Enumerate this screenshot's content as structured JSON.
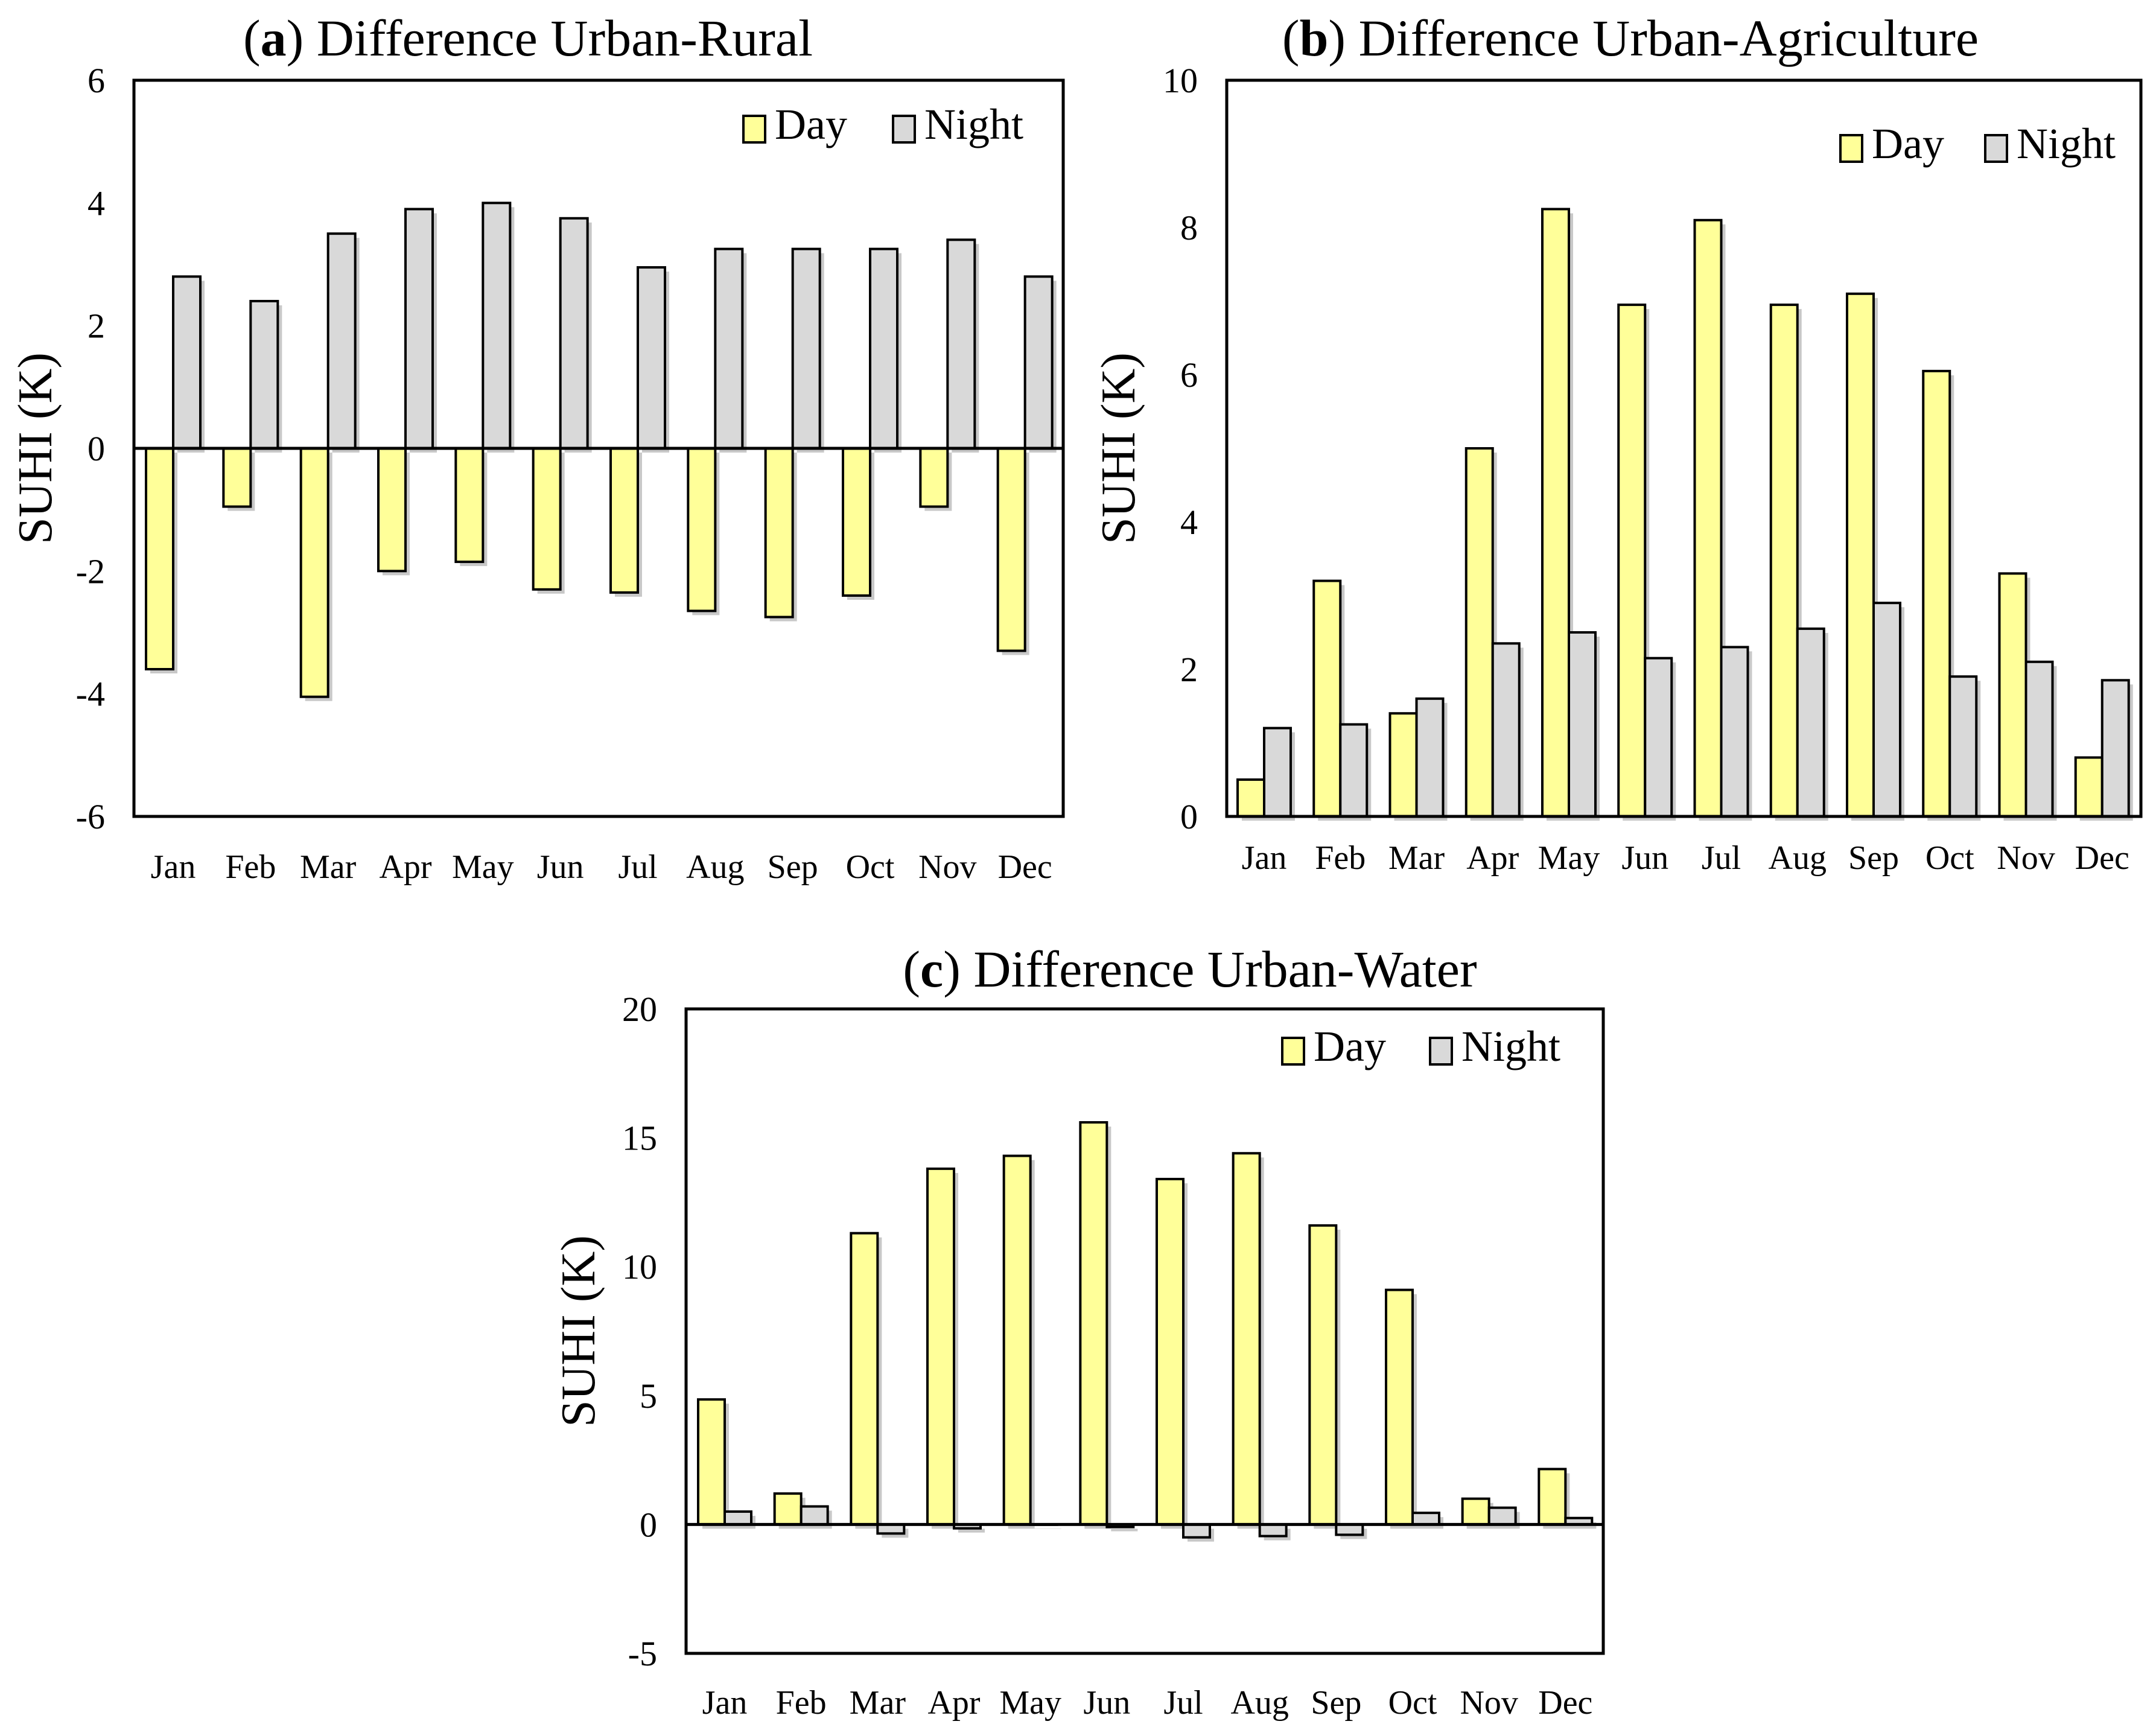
{
  "colors": {
    "day": "#ffff99",
    "night": "#d9d9d9"
  },
  "chart_data": [
    {
      "type": "bar",
      "title_letter": "a",
      "title_text": "Difference Urban-Rural",
      "ylabel": "SUHI (K)",
      "ylim": [
        -6,
        6
      ],
      "yticks": [
        -6,
        -4,
        -2,
        0,
        2,
        4,
        6
      ],
      "legend_position": "top-right",
      "categories": [
        "Jan",
        "Feb",
        "Mar",
        "Apr",
        "May",
        "Jun",
        "Jul",
        "Aug",
        "Sep",
        "Oct",
        "Nov",
        "Dec"
      ],
      "series": [
        {
          "name": "Day",
          "values": [
            -3.6,
            -0.95,
            -4.05,
            -2.0,
            -1.85,
            -2.3,
            -2.35,
            -2.65,
            -2.75,
            -2.4,
            -0.95,
            -3.3
          ]
        },
        {
          "name": "Night",
          "values": [
            2.8,
            2.4,
            3.5,
            3.9,
            4.0,
            3.75,
            2.95,
            3.25,
            3.25,
            3.25,
            3.4,
            2.8
          ]
        }
      ]
    },
    {
      "type": "bar",
      "title_letter": "b",
      "title_text": "Difference Urban-Agriculture",
      "ylabel": "SUHI (K)",
      "ylim": [
        0,
        10
      ],
      "yticks": [
        0,
        2,
        4,
        6,
        8,
        10
      ],
      "legend_position": "top-right",
      "categories": [
        "Jan",
        "Feb",
        "Mar",
        "Apr",
        "May",
        "Jun",
        "Jul",
        "Aug",
        "Sep",
        "Oct",
        "Nov",
        "Dec"
      ],
      "series": [
        {
          "name": "Day",
          "values": [
            0.5,
            3.2,
            1.4,
            5.0,
            8.25,
            6.95,
            8.1,
            6.95,
            7.1,
            6.05,
            3.3,
            0.8
          ]
        },
        {
          "name": "Night",
          "values": [
            1.2,
            1.25,
            1.6,
            2.35,
            2.5,
            2.15,
            2.3,
            2.55,
            2.9,
            1.9,
            2.1,
            1.85
          ]
        }
      ]
    },
    {
      "type": "bar",
      "title_letter": "c",
      "title_text": "Difference Urban-Water",
      "ylabel": "SUHI (K)",
      "ylim": [
        -5,
        20
      ],
      "yticks": [
        -5,
        0,
        5,
        10,
        15,
        20
      ],
      "legend_position": "top-right",
      "categories": [
        "Jan",
        "Feb",
        "Mar",
        "Apr",
        "May",
        "Jun",
        "Jul",
        "Aug",
        "Sep",
        "Oct",
        "Nov",
        "Dec"
      ],
      "series": [
        {
          "name": "Day",
          "values": [
            4.85,
            1.2,
            11.3,
            13.8,
            14.3,
            15.6,
            13.4,
            14.4,
            11.6,
            9.1,
            1.0,
            2.15
          ]
        },
        {
          "name": "Night",
          "values": [
            0.5,
            0.7,
            -0.35,
            -0.15,
            0.0,
            -0.1,
            -0.5,
            -0.45,
            -0.4,
            0.45,
            0.65,
            0.25
          ]
        }
      ]
    }
  ]
}
